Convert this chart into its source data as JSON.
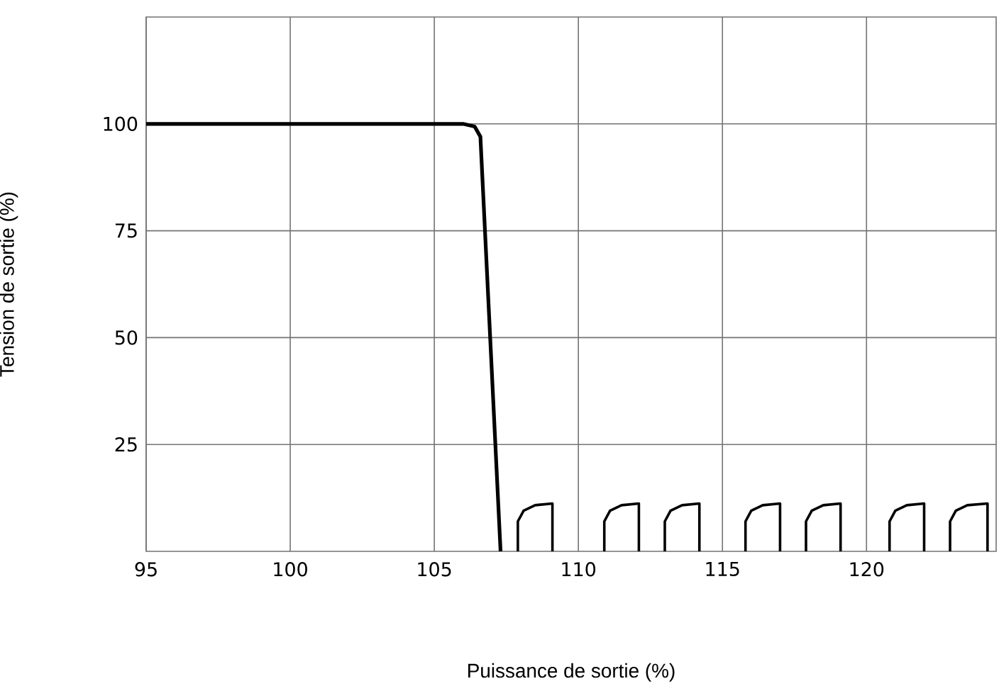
{
  "chart_data": {
    "type": "line",
    "xlabel": "Puissance de sortie (%)",
    "ylabel": "Tension de sortie (%)",
    "xlim": [
      95,
      124.5
    ],
    "ylim": [
      0,
      125
    ],
    "xticks": [
      95,
      100,
      105,
      110,
      115,
      120
    ],
    "yticks": [
      25,
      50,
      75,
      100
    ],
    "grid": true,
    "legend": false,
    "marker": "none",
    "line_style": "solid",
    "series": [
      {
        "color": "#000000",
        "x": [
          95,
          106.0,
          106.4,
          106.6,
          107.3
        ],
        "values": [
          100,
          100,
          99.4,
          97,
          0
        ]
      },
      {
        "color": "#000000",
        "x": [
          107.9,
          107.9,
          108.1,
          108.5,
          109.1,
          109.1
        ],
        "values": [
          0,
          7,
          9.5,
          10.8,
          11.2,
          0
        ]
      },
      {
        "color": "#000000",
        "x": [
          110.9,
          110.9,
          111.1,
          111.5,
          112.1,
          112.1
        ],
        "values": [
          0,
          7,
          9.5,
          10.8,
          11.2,
          0
        ]
      },
      {
        "color": "#000000",
        "x": [
          113.0,
          113.0,
          113.2,
          113.6,
          114.2,
          114.2
        ],
        "values": [
          0,
          7,
          9.5,
          10.8,
          11.2,
          0
        ]
      },
      {
        "color": "#000000",
        "x": [
          115.8,
          115.8,
          116.0,
          116.4,
          117.0,
          117.0
        ],
        "values": [
          0,
          7,
          9.5,
          10.8,
          11.2,
          0
        ]
      },
      {
        "color": "#000000",
        "x": [
          117.9,
          117.9,
          118.1,
          118.5,
          119.1,
          119.1
        ],
        "values": [
          0,
          7,
          9.5,
          10.8,
          11.2,
          0
        ]
      },
      {
        "color": "#000000",
        "x": [
          120.8,
          120.8,
          121.0,
          121.4,
          122.0,
          122.0
        ],
        "values": [
          0,
          7,
          9.5,
          10.8,
          11.2,
          0
        ]
      },
      {
        "color": "#000000",
        "x": [
          122.9,
          122.9,
          123.1,
          123.5,
          124.2,
          124.2
        ],
        "values": [
          0,
          7,
          9.5,
          10.8,
          11.2,
          0
        ]
      }
    ]
  }
}
